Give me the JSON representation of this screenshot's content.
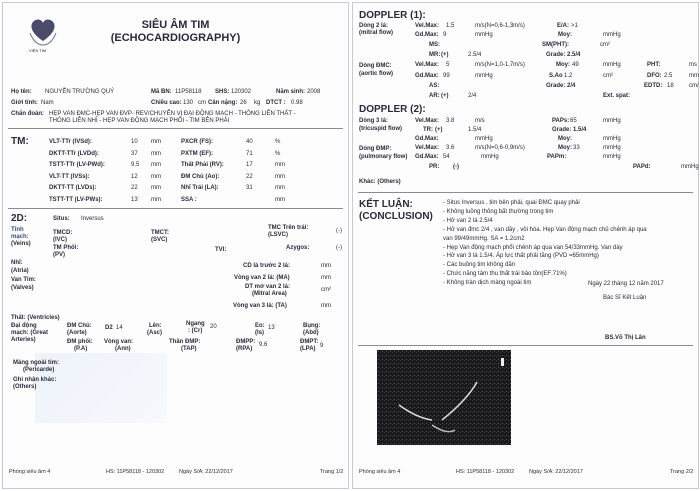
{
  "page1": {
    "logo_text": "VIỆN TIM",
    "title": "SIÊU ÂM TIM",
    "subtitle": "(ECHOCARDIOGRAPHY)",
    "patient": {
      "name_label": "Họ tên:",
      "name": "NGUYỄN TRƯỜNG QUÝ",
      "id_label": "Mã BN:",
      "id": "11P58118",
      "shs_label": "SHS:",
      "shs": "120302",
      "birth_label": "Năm sinh:",
      "birth": "2008",
      "sex_label": "Giới tính:",
      "sex": "Nam",
      "height_label": "Chiều cao:",
      "height": "130",
      "height_unit": "cm",
      "weight_label": "Cân nặng:",
      "weight": "26",
      "weight_unit": "kg",
      "bsa_label": "DTCT :",
      "bsa": "0.98",
      "diagnosis_label": "Chẩn đoán:",
      "diagnosis_1": "HẸP VAN ĐMC-HẸP VAN ĐVP- REV/CHUYỂN VỊ ĐẠI ĐỘNG MẠCH - THÔNG LIÊN THẤT -",
      "diagnosis_2": "THÔNG LIÊN NHĨ - HẸP VAN ĐỘNG MẠCH PHỔI - TIM BÊN PHẢI"
    },
    "tm": {
      "heading": "TM:",
      "rows": [
        {
          "l1": "VLT-TTr (IVSd):",
          "v1": "10",
          "u1": "mm",
          "l2": "PXCR (FS):",
          "v2": "40",
          "u2": "%"
        },
        {
          "l1": "DKTT-TTr (LVDd):",
          "v1": "37",
          "u1": "mm",
          "l2": "PXTM (EF):",
          "v2": "71",
          "u2": "%"
        },
        {
          "l1": "TSTT-TTr (LV-PWd):",
          "v1": "9.5",
          "u1": "mm",
          "l2": "Thất Phải (RV):",
          "v2": "17",
          "u2": "mm"
        },
        {
          "l1": "VLT-TT (IVSs):",
          "v1": "12",
          "u1": "mm",
          "l2": "ĐM Chủ (Ao):",
          "v2": "22",
          "u2": "mm"
        },
        {
          "l1": "DKTT-TT (LVDs):",
          "v1": "22",
          "u1": "mm",
          "l2": "Nhĩ Trái (LA):",
          "v2": "31",
          "u2": "mm"
        },
        {
          "l1": "TSTT-TT (LV-PWs):",
          "v1": "13",
          "u1": "mm",
          "l2": "SSA :",
          "v2": "",
          "u2": "mm"
        }
      ]
    },
    "twod": {
      "heading": "2D:",
      "situs_label": "Situs:",
      "situs": "Inversus",
      "veins_1": "Tĩnh",
      "veins_2": "mạch:",
      "veins_3": "(Veins)",
      "ivc_1": "TMCD:",
      "ivc_2": "(IVC)",
      "svc_1": "TMCT:",
      "svc_2": "(SVC)",
      "lsvc_1": "TMC Trên trái:",
      "lsvc_2": "(LSVC)",
      "lsvc": "(-)",
      "pv_1": "TM Phổi:",
      "pv_2": "(PV)",
      "tvi": "TVI:",
      "azygos_label": "Azygos:",
      "azygos": "(-)",
      "atria_1": "Nhĩ:",
      "atria_2": "(Atria)",
      "valves_1": "Van Tim:",
      "valves_2": "(Valves)",
      "cd_label": "CD lá trước 2 lá:",
      "cd_unit": "mm",
      "ma_label": "Vòng van 2 lá: (MA)",
      "ma_unit": "mm",
      "mva_1": "DT mở van 2 lá:",
      "mva_2": "(Mitral Area)",
      "mva_unit": "cm²",
      "ta_label": "Vòng van 3 lá: (TA)",
      "ta_unit": "mm",
      "ventricles": "Thất: (Ventricles)",
      "ga_1": "Đại động",
      "ga_2": "mạch: (Great",
      "ga_3": "Arteries)",
      "aorte_1": "ĐM Chủ:",
      "aorte_2": "(Aorte)",
      "d2_label": "D2",
      "d2": "14",
      "asc_1": "Lên:",
      "asc_2": "(Asc)",
      "cr_1": "Ngang",
      "cr_2": ": (Cr)",
      "cr": "20",
      "is_1": "Eo:",
      "is_2": "(Is)",
      "is": "13",
      "abd_1": "Bụng:",
      "abd_2": "(Abd)",
      "pa_1": "ĐM phổi:",
      "pa_2": "(P.A)",
      "ann_1": "Vòng van:",
      "ann_2": "(Ann)",
      "tap_1": "Thân ĐMP:",
      "tap_2": "(TAP)",
      "rpa_1": "ĐMPP:",
      "rpa_2": "(RPA)",
      "rpa": "9.6",
      "lpa_1": "ĐMPT:",
      "lpa_2": "(LPA)",
      "lpa": "9",
      "peri_1": "Màng ngoài tim:",
      "peri_2": "(Pericarde)",
      "others_1": "Ghi nhận khác:",
      "others_2": "(Others)"
    },
    "footer": {
      "room": "Phòng siêu âm 4",
      "hs": "HS: 11P58118 - 120302",
      "date": "Ngày S/A: 22/12/2017",
      "page": "Trang 1/2"
    }
  },
  "page2": {
    "doppler1": "DOPPLER (1):",
    "mitral_1": "Dòng 2 lá:",
    "mitral_2": "(mitral flow)",
    "m_vel_label": "Vel.Max:",
    "m_vel": "1.5",
    "m_vel_unit": "m/s(N=0,6-1,3m/s)",
    "ea_label": "E/A:",
    "ea": ">1",
    "m_gd_label": "Gd.Max:",
    "m_gd": "9",
    "m_gd_unit": "mmHg",
    "m_moy_label": "Moy:",
    "m_moy_unit": "mmHg",
    "ms_label": "MS:",
    "sm_label": "SM(PHT):",
    "sm_unit": "cm²",
    "mr_label": "MR:",
    "mr": "(+)",
    "mr_val": "2.5/4",
    "mr_grade": "Grade: 2.5/4",
    "aortic_1": "Dòng ĐMC:",
    "aortic_2": "(aortic flow)",
    "a_vel_label": "Vel.Max:",
    "a_vel": "5",
    "a_vel_unit": "m/s(N=1,0-1,7m/s)",
    "a_moy_label": "Moy:",
    "a_moy": "49",
    "a_moy_unit": "mmHg",
    "pht_label": "PHT:",
    "pht_unit": "ms",
    "a_gd_label": "Gd.Max:",
    "a_gd": "99",
    "a_gd_unit": "mmHg",
    "sao_label": "S.Ao",
    "sao": "1.2",
    "sao_unit": "cm²",
    "dfo_label": "DFO:",
    "dfo": "2.5",
    "dfo_unit": "mm",
    "as_label": "AS:",
    "as_grade": "Grade: 2/4",
    "edtd_label": "EDTD:",
    "edtd": "18",
    "edtd_unit": "cm/",
    "ar_label": "AR:",
    "ar": "(+)",
    "ar_val": "2/4",
    "ext_label": "Ext. spat:",
    "doppler2": "DOPPLER (2):",
    "tric_1": "Dòng 3 lá:",
    "tric_2": "(tricuspid flow)",
    "t_vel_label": "Vel.Max:",
    "t_vel": "3.8",
    "t_vel_unit": "m/s",
    "paps_label": "PAPs:",
    "paps": "65",
    "paps_unit": "mmHg",
    "tr_label": "TR:",
    "tr": "(+)",
    "tr_val": "1.5/4",
    "tr_grade": "Grade: 1.5/4",
    "t_gd_label": "Gd.Max:",
    "t_gd_unit": "mmHg",
    "t_moy_label": "Moy:",
    "t_moy_unit": "mmHg",
    "pulm_1": "Dòng ĐMP:",
    "pulm_2": "(pulmonary flow)",
    "p_vel_label": "Vel.Max:",
    "p_vel": "3.6",
    "p_vel_unit": "m/s(N=0,6-0,9m/s)",
    "p_moy_label": "Moy:",
    "p_moy": "33",
    "p_moy_unit": "mmHg",
    "p_gd_label": "Gd.Max:",
    "p_gd": "54",
    "p_gd_unit": "mmHg",
    "papm_label": "PAPm:",
    "papm_unit": "mmHg",
    "pr_label": "PR:",
    "pr": "(-)",
    "papd_label": "PAPd:",
    "papd_unit": "mmHg",
    "others": "Khác: (Others)",
    "conclusion_1": "KẾT LUẬN:",
    "conclusion_2": "(CONCLUSION)",
    "conclusion_lines": [
      "- Situs Inversus , tim bên phải, quai ĐMC quay phải",
      "- Không luồng thông bất thường trong tim",
      "- Hở van 2 lá 2.5/4",
      "- Hở van đmc 2/4 , van dầy , vôi hóa. Hẹp Van động mạch chủ chênh áp qua",
      "van 99/49mmHg. SA = 1.2cm2",
      "- Hẹp Van động mạch phổi chênh áp qua van 54/33mmHg. Van dày",
      "- Hở van 3 lá  1.5/4. Áp lực thất phải tăng (PVD =65mmHg)",
      "- Các buồng tim không dãn",
      "- Chức năng tâm thu thất trái bảo tồn(EF:71%)",
      "- Không tràn dịch màng ngoài tim"
    ],
    "date": "Ngày 22 tháng 12 năm 2017",
    "doctor_title": "Bác Sĩ Kết Luận",
    "doctor": "BS.Võ Thị Lân",
    "footer": {
      "room": "Phòng siêu âm 4",
      "hs": "HS: 11P58118 - 120302",
      "date": "Ngày S/A: 22/12/2017",
      "page": "Trang 2/2"
    }
  }
}
